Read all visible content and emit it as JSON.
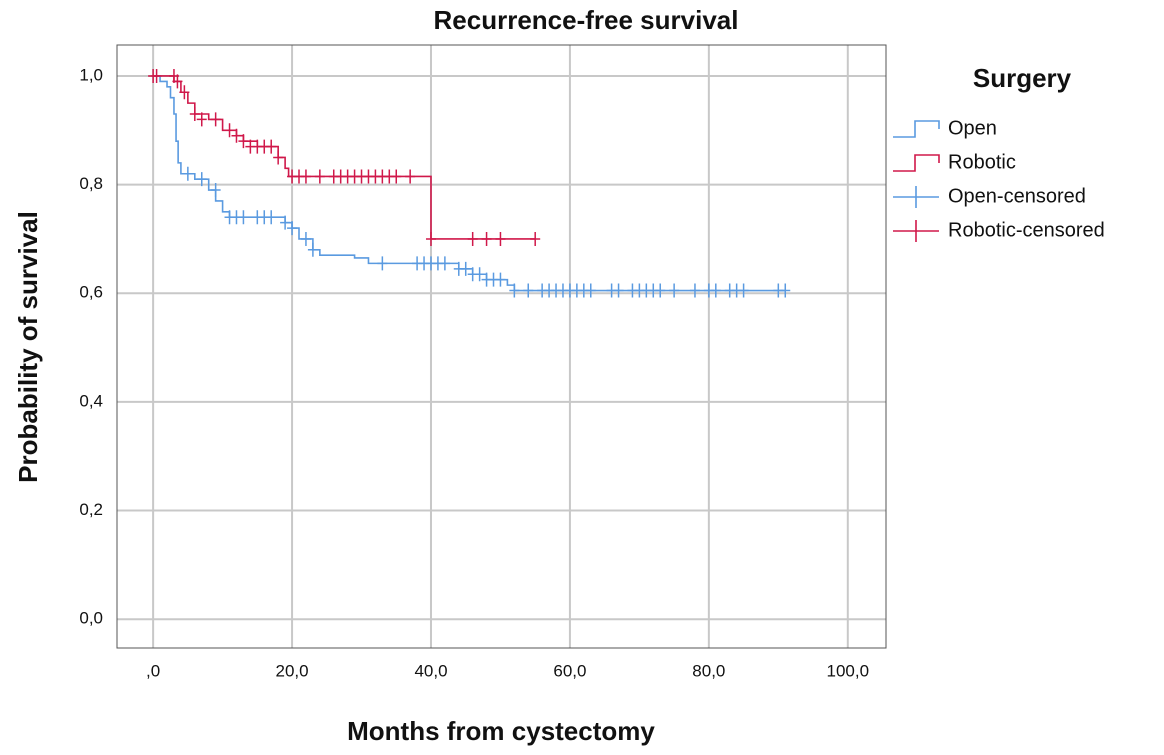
{
  "chart_data": {
    "type": "step",
    "title": "Recurrence-free survival",
    "x_label": "Months from cystectomy",
    "y_label": "Probability of survival",
    "legend_title": "Surgery",
    "legend": "right",
    "grid": true,
    "xlim": [
      -5.2,
      105.5
    ],
    "ylim": [
      -0.053,
      1.057
    ],
    "xticks": [
      {
        "value": 0,
        "label": ",0"
      },
      {
        "value": 20,
        "label": "20,0"
      },
      {
        "value": 40,
        "label": "40,0"
      },
      {
        "value": 60,
        "label": "60,0"
      },
      {
        "value": 80,
        "label": "80,0"
      },
      {
        "value": 100,
        "label": "100,0"
      }
    ],
    "yticks": [
      {
        "value": 0,
        "label": "0,0"
      },
      {
        "value": 0.2,
        "label": "0,2"
      },
      {
        "value": 0.4,
        "label": "0,4"
      },
      {
        "value": 0.6,
        "label": "0,6"
      },
      {
        "value": 0.8,
        "label": "0,8"
      },
      {
        "value": 1.0,
        "label": "1,0"
      }
    ],
    "series": [
      {
        "name": "Open",
        "color": "#5a9ae0",
        "style": "step",
        "x": [
          0,
          1,
          2,
          2.5,
          3,
          3.3,
          3.6,
          4,
          6,
          8,
          9,
          10,
          11,
          19,
          20,
          21,
          23,
          24,
          29,
          31,
          44,
          46,
          48,
          51,
          52,
          91
        ],
        "values": [
          1.0,
          0.99,
          0.98,
          0.96,
          0.93,
          0.88,
          0.84,
          0.82,
          0.81,
          0.79,
          0.77,
          0.75,
          0.74,
          0.73,
          0.72,
          0.7,
          0.68,
          0.67,
          0.665,
          0.655,
          0.645,
          0.635,
          0.625,
          0.615,
          0.605,
          0.605
        ]
      },
      {
        "name": "Robotic",
        "color": "#d0184a",
        "style": "step",
        "x": [
          0,
          3,
          4,
          5,
          6,
          8,
          10,
          12,
          13,
          15,
          18,
          19,
          19.5,
          40,
          55
        ],
        "values": [
          1.0,
          0.99,
          0.97,
          0.95,
          0.93,
          0.92,
          0.9,
          0.89,
          0.88,
          0.87,
          0.85,
          0.83,
          0.815,
          0.7,
          0.7
        ]
      },
      {
        "name": "Open-censored",
        "color": "#5a9ae0",
        "style": "censor",
        "x": [
          5,
          7,
          9,
          11,
          12,
          13,
          15,
          16,
          17,
          19,
          20,
          22,
          23,
          33,
          38,
          39,
          40,
          41,
          42,
          44,
          45,
          46,
          47,
          48,
          49,
          50,
          52,
          54,
          56,
          57,
          58,
          59,
          60,
          61,
          62,
          63,
          66,
          67,
          69,
          70,
          71,
          72,
          73,
          75,
          78,
          80,
          81,
          83,
          84,
          85,
          90,
          91
        ],
        "values": [
          0.82,
          0.81,
          0.79,
          0.74,
          0.74,
          0.74,
          0.74,
          0.74,
          0.74,
          0.73,
          0.72,
          0.7,
          0.68,
          0.655,
          0.655,
          0.655,
          0.655,
          0.655,
          0.655,
          0.645,
          0.645,
          0.635,
          0.635,
          0.625,
          0.625,
          0.625,
          0.605,
          0.605,
          0.605,
          0.605,
          0.605,
          0.605,
          0.605,
          0.605,
          0.605,
          0.605,
          0.605,
          0.605,
          0.605,
          0.605,
          0.605,
          0.605,
          0.605,
          0.605,
          0.605,
          0.605,
          0.605,
          0.605,
          0.605,
          0.605,
          0.605,
          0.605
        ]
      },
      {
        "name": "Robotic-censored",
        "color": "#d0184a",
        "style": "censor",
        "x": [
          0,
          0.5,
          3,
          3.5,
          4.5,
          6,
          7,
          9,
          11,
          12,
          13,
          14,
          15,
          16,
          17,
          18,
          20,
          21,
          22,
          24,
          26,
          27,
          28,
          29,
          30,
          31,
          32,
          33,
          34,
          35,
          37,
          40,
          46,
          48,
          50,
          55
        ],
        "values": [
          1.0,
          1.0,
          1.0,
          0.99,
          0.97,
          0.93,
          0.92,
          0.92,
          0.9,
          0.89,
          0.88,
          0.87,
          0.87,
          0.87,
          0.87,
          0.85,
          0.815,
          0.815,
          0.815,
          0.815,
          0.815,
          0.815,
          0.815,
          0.815,
          0.815,
          0.815,
          0.815,
          0.815,
          0.815,
          0.815,
          0.815,
          0.7,
          0.7,
          0.7,
          0.7,
          0.7
        ]
      }
    ]
  }
}
